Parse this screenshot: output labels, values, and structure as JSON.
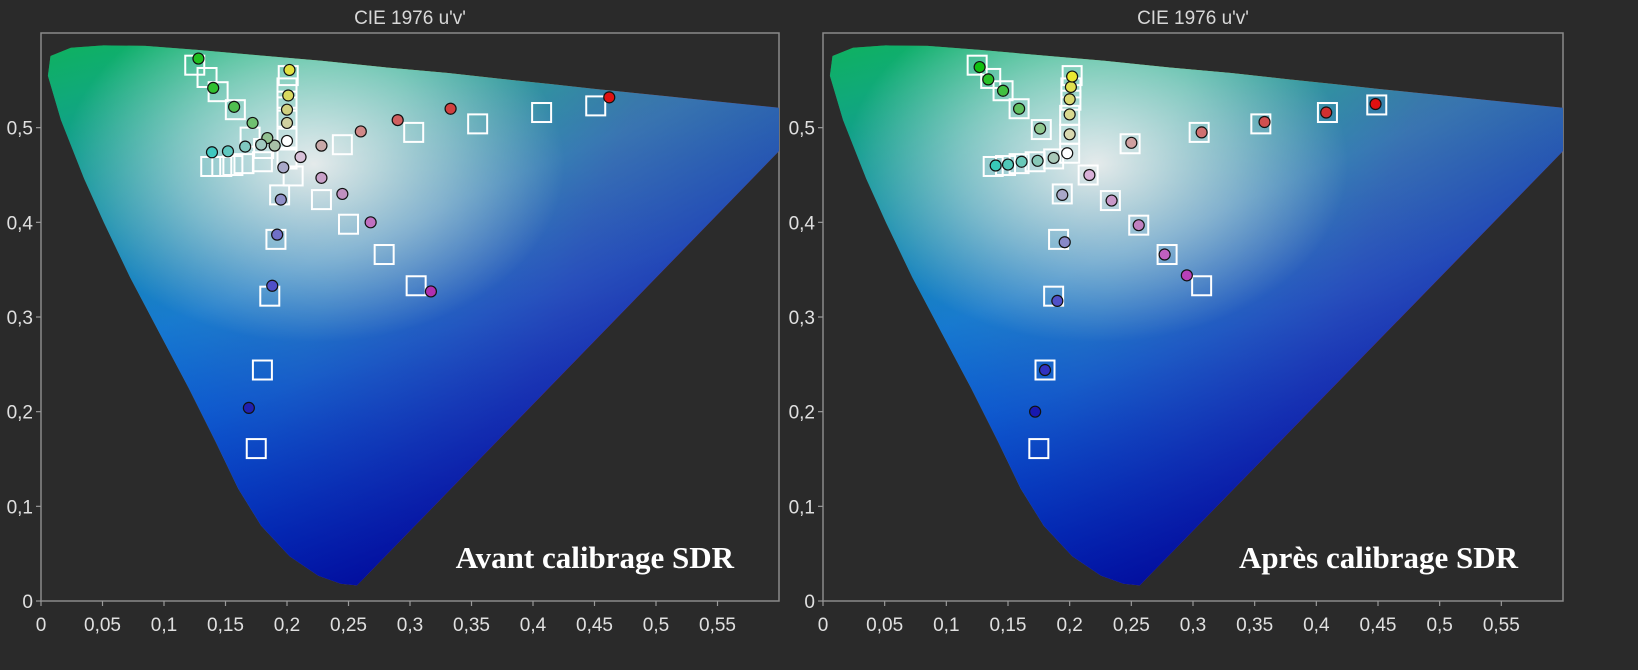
{
  "chart_data": [
    {
      "type": "scatter",
      "title": "CIE 1976 u'v'",
      "annotation": "Avant calibrage SDR",
      "xlim": [
        0,
        0.6
      ],
      "ylim": [
        0,
        0.6
      ],
      "x_ticks": [
        {
          "value": 0,
          "label": "0"
        },
        {
          "value": 0.05,
          "label": "0,05"
        },
        {
          "value": 0.1,
          "label": "0,1"
        },
        {
          "value": 0.15,
          "label": "0,15"
        },
        {
          "value": 0.2,
          "label": "0,2"
        },
        {
          "value": 0.25,
          "label": "0,25"
        },
        {
          "value": 0.3,
          "label": "0,3"
        },
        {
          "value": 0.35,
          "label": "0,35"
        },
        {
          "value": 0.4,
          "label": "0,4"
        },
        {
          "value": 0.45,
          "label": "0,45"
        },
        {
          "value": 0.5,
          "label": "0,5"
        },
        {
          "value": 0.55,
          "label": "0,55"
        }
      ],
      "y_ticks": [
        {
          "value": 0,
          "label": "0"
        },
        {
          "value": 0.1,
          "label": "0,1"
        },
        {
          "value": 0.2,
          "label": "0,2"
        },
        {
          "value": 0.3,
          "label": "0,3"
        },
        {
          "value": 0.4,
          "label": "0,4"
        },
        {
          "value": 0.5,
          "label": "0,5"
        }
      ],
      "targets": [
        [
          0.2,
          0.467
        ],
        [
          0.205,
          0.449
        ],
        [
          0.228,
          0.424
        ],
        [
          0.25,
          0.398
        ],
        [
          0.279,
          0.366
        ],
        [
          0.305,
          0.333
        ],
        [
          0.2,
          0.467
        ],
        [
          0.245,
          0.482
        ],
        [
          0.303,
          0.495
        ],
        [
          0.355,
          0.504
        ],
        [
          0.407,
          0.516
        ],
        [
          0.451,
          0.523
        ],
        [
          0.2,
          0.467
        ],
        [
          0.2,
          0.489
        ],
        [
          0.2,
          0.511
        ],
        [
          0.2,
          0.528
        ],
        [
          0.2,
          0.542
        ],
        [
          0.201,
          0.555
        ],
        [
          0.2,
          0.467
        ],
        [
          0.181,
          0.478
        ],
        [
          0.17,
          0.49
        ],
        [
          0.158,
          0.519
        ],
        [
          0.144,
          0.538
        ],
        [
          0.135,
          0.553
        ],
        [
          0.125,
          0.566
        ],
        [
          0.2,
          0.467
        ],
        [
          0.18,
          0.464
        ],
        [
          0.165,
          0.462
        ],
        [
          0.156,
          0.46
        ],
        [
          0.147,
          0.459
        ],
        [
          0.138,
          0.459
        ],
        [
          0.2,
          0.467
        ],
        [
          0.194,
          0.429
        ],
        [
          0.191,
          0.382
        ],
        [
          0.186,
          0.322
        ],
        [
          0.18,
          0.244
        ],
        [
          0.175,
          0.161
        ]
      ],
      "measured": [
        {
          "u": 0.2,
          "v": 0.486,
          "color": "#ffffff"
        },
        {
          "u": 0.211,
          "v": 0.469,
          "color": "#d8c0d8"
        },
        {
          "u": 0.228,
          "v": 0.447,
          "color": "#c8a0c8"
        },
        {
          "u": 0.245,
          "v": 0.43,
          "color": "#c090c0"
        },
        {
          "u": 0.268,
          "v": 0.4,
          "color": "#c070c0"
        },
        {
          "u": 0.317,
          "v": 0.327,
          "color": "#b030b0"
        },
        {
          "u": 0.228,
          "v": 0.481,
          "color": "#c8a8a8"
        },
        {
          "u": 0.26,
          "v": 0.496,
          "color": "#d08888"
        },
        {
          "u": 0.29,
          "v": 0.508,
          "color": "#d06060"
        },
        {
          "u": 0.333,
          "v": 0.52,
          "color": "#d04040"
        },
        {
          "u": 0.462,
          "v": 0.532,
          "color": "#e01010"
        },
        {
          "u": 0.2,
          "v": 0.505,
          "color": "#d0d0a0"
        },
        {
          "u": 0.2,
          "v": 0.519,
          "color": "#d0d080"
        },
        {
          "u": 0.201,
          "v": 0.534,
          "color": "#d8d860"
        },
        {
          "u": 0.202,
          "v": 0.561,
          "color": "#e0e040"
        },
        {
          "u": 0.19,
          "v": 0.481,
          "color": "#a8c0a8"
        },
        {
          "u": 0.184,
          "v": 0.489,
          "color": "#90c090"
        },
        {
          "u": 0.172,
          "v": 0.505,
          "color": "#70c070"
        },
        {
          "u": 0.157,
          "v": 0.522,
          "color": "#50c050"
        },
        {
          "u": 0.14,
          "v": 0.542,
          "color": "#30c030"
        },
        {
          "u": 0.128,
          "v": 0.573,
          "color": "#20c020"
        },
        {
          "u": 0.179,
          "v": 0.482,
          "color": "#a0c8c0"
        },
        {
          "u": 0.166,
          "v": 0.48,
          "color": "#80c8c0"
        },
        {
          "u": 0.152,
          "v": 0.475,
          "color": "#60c8c0"
        },
        {
          "u": 0.139,
          "v": 0.474,
          "color": "#40c8c0"
        },
        {
          "u": 0.197,
          "v": 0.458,
          "color": "#a8a8c8"
        },
        {
          "u": 0.195,
          "v": 0.424,
          "color": "#9090c8"
        },
        {
          "u": 0.192,
          "v": 0.387,
          "color": "#7070c8"
        },
        {
          "u": 0.188,
          "v": 0.333,
          "color": "#5050c8"
        },
        {
          "u": 0.169,
          "v": 0.204,
          "color": "#2020b0"
        }
      ]
    },
    {
      "type": "scatter",
      "title": "CIE 1976 u'v'",
      "annotation": "Après calibrage SDR",
      "xlim": [
        0,
        0.6
      ],
      "ylim": [
        0,
        0.6
      ],
      "x_ticks": [
        {
          "value": 0,
          "label": "0"
        },
        {
          "value": 0.05,
          "label": "0,05"
        },
        {
          "value": 0.1,
          "label": "0,1"
        },
        {
          "value": 0.15,
          "label": "0,15"
        },
        {
          "value": 0.2,
          "label": "0,2"
        },
        {
          "value": 0.25,
          "label": "0,25"
        },
        {
          "value": 0.3,
          "label": "0,3"
        },
        {
          "value": 0.35,
          "label": "0,35"
        },
        {
          "value": 0.4,
          "label": "0,4"
        },
        {
          "value": 0.45,
          "label": "0,45"
        },
        {
          "value": 0.5,
          "label": "0,5"
        },
        {
          "value": 0.55,
          "label": "0,55"
        }
      ],
      "y_ticks": [
        {
          "value": 0,
          "label": "0"
        },
        {
          "value": 0.1,
          "label": "0,1"
        },
        {
          "value": 0.2,
          "label": "0,2"
        },
        {
          "value": 0.3,
          "label": "0,3"
        },
        {
          "value": 0.4,
          "label": "0,4"
        },
        {
          "value": 0.5,
          "label": "0,5"
        }
      ],
      "targets": [
        [
          0.2,
          0.473
        ],
        [
          0.215,
          0.45
        ],
        [
          0.233,
          0.423
        ],
        [
          0.256,
          0.397
        ],
        [
          0.279,
          0.366
        ],
        [
          0.307,
          0.333
        ],
        [
          0.249,
          0.483
        ],
        [
          0.305,
          0.495
        ],
        [
          0.355,
          0.504
        ],
        [
          0.409,
          0.516
        ],
        [
          0.449,
          0.524
        ],
        [
          0.2,
          0.493
        ],
        [
          0.2,
          0.513
        ],
        [
          0.201,
          0.529
        ],
        [
          0.201,
          0.542
        ],
        [
          0.202,
          0.555
        ],
        [
          0.177,
          0.498
        ],
        [
          0.159,
          0.52
        ],
        [
          0.146,
          0.539
        ],
        [
          0.136,
          0.552
        ],
        [
          0.125,
          0.566
        ],
        [
          0.187,
          0.467
        ],
        [
          0.172,
          0.464
        ],
        [
          0.159,
          0.462
        ],
        [
          0.148,
          0.46
        ],
        [
          0.138,
          0.459
        ],
        [
          0.194,
          0.43
        ],
        [
          0.191,
          0.382
        ],
        [
          0.187,
          0.322
        ],
        [
          0.18,
          0.244
        ],
        [
          0.175,
          0.161
        ]
      ],
      "measured": [
        {
          "u": 0.198,
          "v": 0.473,
          "color": "#ffffff"
        },
        {
          "u": 0.216,
          "v": 0.45,
          "color": "#d8b0d8"
        },
        {
          "u": 0.234,
          "v": 0.423,
          "color": "#c898c8"
        },
        {
          "u": 0.256,
          "v": 0.397,
          "color": "#c080c0"
        },
        {
          "u": 0.277,
          "v": 0.366,
          "color": "#c060c0"
        },
        {
          "u": 0.295,
          "v": 0.344,
          "color": "#b840b8"
        },
        {
          "u": 0.25,
          "v": 0.484,
          "color": "#d0a0a0"
        },
        {
          "u": 0.307,
          "v": 0.495,
          "color": "#d07070"
        },
        {
          "u": 0.358,
          "v": 0.506,
          "color": "#d05050"
        },
        {
          "u": 0.408,
          "v": 0.516,
          "color": "#d03030"
        },
        {
          "u": 0.448,
          "v": 0.525,
          "color": "#e01010"
        },
        {
          "u": 0.2,
          "v": 0.493,
          "color": "#d8d8b0"
        },
        {
          "u": 0.2,
          "v": 0.514,
          "color": "#d8d890"
        },
        {
          "u": 0.2,
          "v": 0.53,
          "color": "#d8d870"
        },
        {
          "u": 0.201,
          "v": 0.543,
          "color": "#e0e050"
        },
        {
          "u": 0.202,
          "v": 0.554,
          "color": "#e8e830"
        },
        {
          "u": 0.187,
          "v": 0.468,
          "color": "#a8c8b8"
        },
        {
          "u": 0.174,
          "v": 0.465,
          "color": "#88c8b8"
        },
        {
          "u": 0.161,
          "v": 0.464,
          "color": "#68c8b8"
        },
        {
          "u": 0.15,
          "v": 0.461,
          "color": "#50c8b8"
        },
        {
          "u": 0.14,
          "v": 0.46,
          "color": "#38c8b8"
        },
        {
          "u": 0.176,
          "v": 0.499,
          "color": "#90c890"
        },
        {
          "u": 0.159,
          "v": 0.52,
          "color": "#60c060"
        },
        {
          "u": 0.146,
          "v": 0.539,
          "color": "#40c040"
        },
        {
          "u": 0.134,
          "v": 0.551,
          "color": "#28c028"
        },
        {
          "u": 0.127,
          "v": 0.564,
          "color": "#10c010"
        },
        {
          "u": 0.194,
          "v": 0.429,
          "color": "#a8a8c8"
        },
        {
          "u": 0.196,
          "v": 0.379,
          "color": "#8888c8"
        },
        {
          "u": 0.19,
          "v": 0.317,
          "color": "#5050c8"
        },
        {
          "u": 0.18,
          "v": 0.244,
          "color": "#3030c0"
        },
        {
          "u": 0.172,
          "v": 0.2,
          "color": "#1818b0"
        }
      ]
    }
  ]
}
